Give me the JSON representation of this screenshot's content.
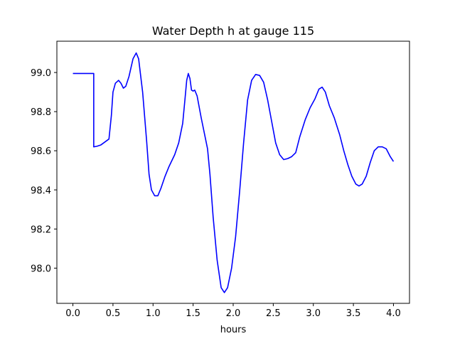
{
  "chart_data": {
    "type": "line",
    "title": "Water Depth h at gauge 115",
    "xlabel": "hours",
    "ylabel": "",
    "xlim": [
      -0.2,
      4.2
    ],
    "ylim": [
      97.82,
      99.16
    ],
    "xticks": [
      "0.0",
      "0.5",
      "1.0",
      "1.5",
      "2.0",
      "2.5",
      "3.0",
      "3.5",
      "4.0"
    ],
    "yticks": [
      "98.0",
      "98.2",
      "98.4",
      "98.6",
      "98.8",
      "99.0"
    ],
    "grid": false,
    "legend": "none",
    "series": [
      {
        "color": "#0000ff",
        "points": [
          [
            0.0,
            98.995
          ],
          [
            0.1,
            98.995
          ],
          [
            0.2,
            98.995
          ],
          [
            0.26,
            98.995
          ],
          [
            0.26,
            98.62
          ],
          [
            0.3,
            98.623
          ],
          [
            0.35,
            98.63
          ],
          [
            0.4,
            98.645
          ],
          [
            0.45,
            98.66
          ],
          [
            0.48,
            98.78
          ],
          [
            0.5,
            98.9
          ],
          [
            0.53,
            98.945
          ],
          [
            0.57,
            98.96
          ],
          [
            0.6,
            98.945
          ],
          [
            0.63,
            98.92
          ],
          [
            0.66,
            98.93
          ],
          [
            0.7,
            98.98
          ],
          [
            0.75,
            99.07
          ],
          [
            0.79,
            99.1
          ],
          [
            0.82,
            99.07
          ],
          [
            0.87,
            98.9
          ],
          [
            0.92,
            98.65
          ],
          [
            0.95,
            98.48
          ],
          [
            0.98,
            98.4
          ],
          [
            1.02,
            98.37
          ],
          [
            1.06,
            98.37
          ],
          [
            1.1,
            98.41
          ],
          [
            1.15,
            98.47
          ],
          [
            1.2,
            98.52
          ],
          [
            1.27,
            98.58
          ],
          [
            1.32,
            98.64
          ],
          [
            1.37,
            98.74
          ],
          [
            1.4,
            98.87
          ],
          [
            1.42,
            98.96
          ],
          [
            1.44,
            98.995
          ],
          [
            1.46,
            98.97
          ],
          [
            1.48,
            98.91
          ],
          [
            1.5,
            98.905
          ],
          [
            1.52,
            98.91
          ],
          [
            1.55,
            98.88
          ],
          [
            1.6,
            98.77
          ],
          [
            1.65,
            98.67
          ],
          [
            1.68,
            98.61
          ],
          [
            1.71,
            98.48
          ],
          [
            1.75,
            98.26
          ],
          [
            1.8,
            98.04
          ],
          [
            1.85,
            97.9
          ],
          [
            1.89,
            97.875
          ],
          [
            1.93,
            97.9
          ],
          [
            1.98,
            98.0
          ],
          [
            2.03,
            98.16
          ],
          [
            2.08,
            98.39
          ],
          [
            2.13,
            98.64
          ],
          [
            2.18,
            98.86
          ],
          [
            2.23,
            98.96
          ],
          [
            2.28,
            98.99
          ],
          [
            2.33,
            98.985
          ],
          [
            2.38,
            98.95
          ],
          [
            2.43,
            98.86
          ],
          [
            2.48,
            98.75
          ],
          [
            2.53,
            98.64
          ],
          [
            2.58,
            98.58
          ],
          [
            2.63,
            98.555
          ],
          [
            2.68,
            98.56
          ],
          [
            2.73,
            98.57
          ],
          [
            2.78,
            98.59
          ],
          [
            2.83,
            98.67
          ],
          [
            2.9,
            98.76
          ],
          [
            2.96,
            98.82
          ],
          [
            3.02,
            98.865
          ],
          [
            3.07,
            98.915
          ],
          [
            3.11,
            98.925
          ],
          [
            3.15,
            98.9
          ],
          [
            3.2,
            98.83
          ],
          [
            3.26,
            98.77
          ],
          [
            3.33,
            98.68
          ],
          [
            3.38,
            98.6
          ],
          [
            3.43,
            98.53
          ],
          [
            3.48,
            98.47
          ],
          [
            3.53,
            98.43
          ],
          [
            3.57,
            98.42
          ],
          [
            3.61,
            98.43
          ],
          [
            3.66,
            98.47
          ],
          [
            3.71,
            98.54
          ],
          [
            3.76,
            98.6
          ],
          [
            3.81,
            98.62
          ],
          [
            3.86,
            98.62
          ],
          [
            3.91,
            98.61
          ],
          [
            3.96,
            98.57
          ],
          [
            4.0,
            98.545
          ]
        ]
      }
    ]
  }
}
